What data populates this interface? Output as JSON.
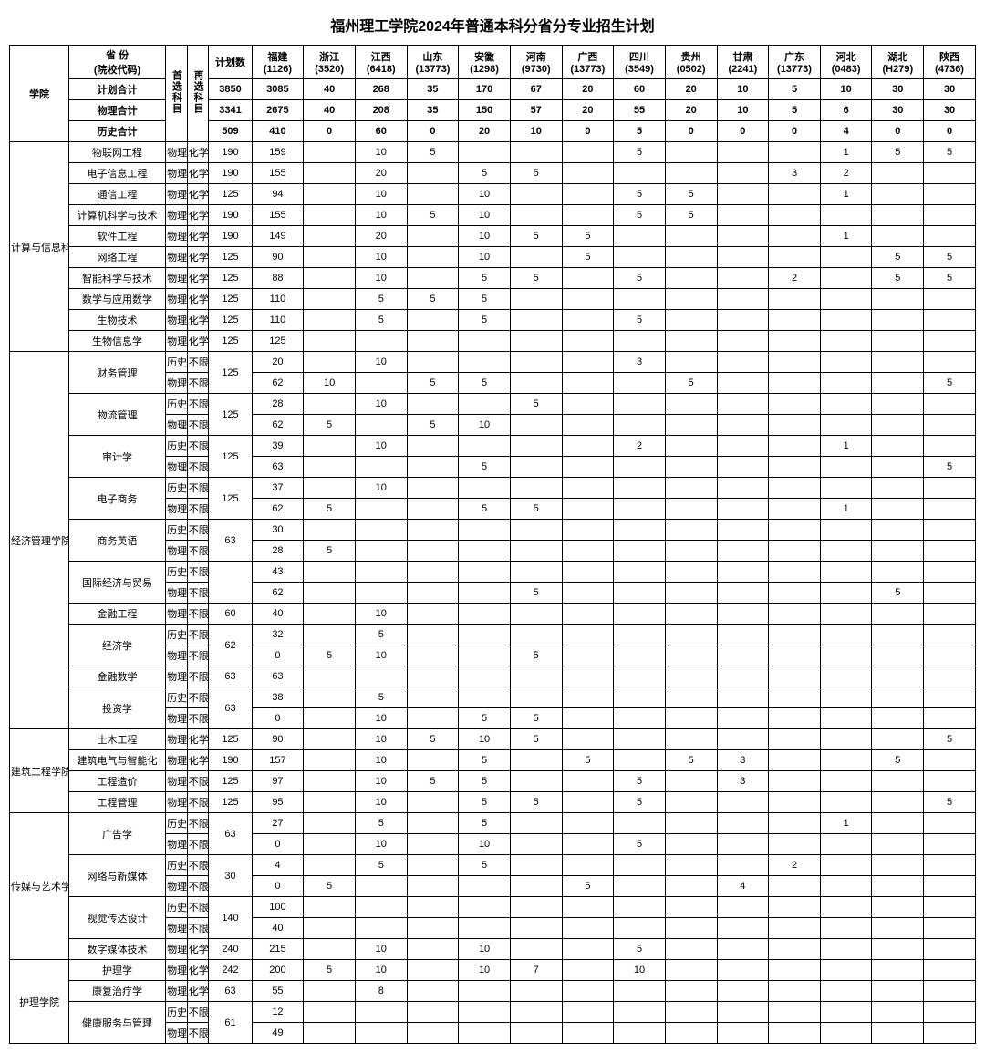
{
  "title": "福州理工学院2024年普通本科分省分专业招生计划",
  "header": {
    "college": "学院",
    "province_code": "省 份\n(院校代码)",
    "first_sub": "首选科目",
    "second_sub": "再选科目",
    "plan_count": "计划数",
    "provinces": [
      {
        "name": "福建",
        "code": "(1126)"
      },
      {
        "name": "浙江",
        "code": "(3520)"
      },
      {
        "name": "江西",
        "code": "(6418)"
      },
      {
        "name": "山东",
        "code": "(13773)"
      },
      {
        "name": "安徽",
        "code": "(1298)"
      },
      {
        "name": "河南",
        "code": "(9730)"
      },
      {
        "name": "广西",
        "code": "(13773)"
      },
      {
        "name": "四川",
        "code": "(3549)"
      },
      {
        "name": "贵州",
        "code": "(0502)"
      },
      {
        "name": "甘肃",
        "code": "(2241)"
      },
      {
        "name": "广东",
        "code": "(13773)"
      },
      {
        "name": "河北",
        "code": "(0483)"
      },
      {
        "name": "湖北",
        "code": "(H279)"
      },
      {
        "name": "陕西",
        "code": "(4736)"
      }
    ],
    "total_plan": "计划合计",
    "physics_total": "物理合计",
    "history_total": "历史合计"
  },
  "totals": {
    "all": [
      "3850",
      "3085",
      "40",
      "268",
      "35",
      "170",
      "67",
      "20",
      "60",
      "20",
      "10",
      "5",
      "10",
      "30",
      "30"
    ],
    "physics": [
      "3341",
      "2675",
      "40",
      "208",
      "35",
      "150",
      "57",
      "20",
      "55",
      "20",
      "10",
      "5",
      "6",
      "30",
      "30"
    ],
    "history": [
      "509",
      "410",
      "0",
      "60",
      "0",
      "20",
      "10",
      "0",
      "5",
      "0",
      "0",
      "0",
      "4",
      "0",
      "0"
    ]
  },
  "colleges": [
    {
      "name": "计算与信息科学学院",
      "rows": [
        {
          "major": "物联网工程",
          "s1": "物理",
          "s2": "化学",
          "plan": "190",
          "v": [
            "159",
            "",
            "10",
            "5",
            "",
            "",
            "",
            "5",
            "",
            "",
            "",
            "1",
            "5",
            "5"
          ]
        },
        {
          "major": "电子信息工程",
          "s1": "物理",
          "s2": "化学",
          "plan": "190",
          "v": [
            "155",
            "",
            "20",
            "",
            "5",
            "5",
            "",
            "",
            "",
            "",
            "3",
            "2",
            "",
            ""
          ]
        },
        {
          "major": "通信工程",
          "s1": "物理",
          "s2": "化学",
          "plan": "125",
          "v": [
            "94",
            "",
            "10",
            "",
            "10",
            "",
            "",
            "5",
            "5",
            "",
            "",
            "1",
            "",
            ""
          ]
        },
        {
          "major": "计算机科学与技术",
          "s1": "物理",
          "s2": "化学",
          "plan": "190",
          "v": [
            "155",
            "",
            "10",
            "5",
            "10",
            "",
            "",
            "5",
            "5",
            "",
            "",
            "",
            "",
            ""
          ]
        },
        {
          "major": "软件工程",
          "s1": "物理",
          "s2": "化学",
          "plan": "190",
          "v": [
            "149",
            "",
            "20",
            "",
            "10",
            "5",
            "5",
            "",
            "",
            "",
            "",
            "1",
            "",
            ""
          ]
        },
        {
          "major": "网络工程",
          "s1": "物理",
          "s2": "化学",
          "plan": "125",
          "v": [
            "90",
            "",
            "10",
            "",
            "10",
            "",
            "5",
            "",
            "",
            "",
            "",
            "",
            "5",
            "5"
          ]
        },
        {
          "major": "智能科学与技术",
          "s1": "物理",
          "s2": "化学",
          "plan": "125",
          "v": [
            "88",
            "",
            "10",
            "",
            "5",
            "5",
            "",
            "5",
            "",
            "",
            "2",
            "",
            "5",
            "5"
          ]
        },
        {
          "major": "数学与应用数学",
          "s1": "物理",
          "s2": "化学",
          "plan": "125",
          "v": [
            "110",
            "",
            "5",
            "5",
            "5",
            "",
            "",
            "",
            "",
            "",
            "",
            "",
            "",
            ""
          ]
        },
        {
          "major": "生物技术",
          "s1": "物理",
          "s2": "化学",
          "plan": "125",
          "v": [
            "110",
            "",
            "5",
            "",
            "5",
            "",
            "",
            "5",
            "",
            "",
            "",
            "",
            "",
            ""
          ]
        },
        {
          "major": "生物信息学",
          "s1": "物理",
          "s2": "化学",
          "plan": "125",
          "v": [
            "125",
            "",
            "",
            "",
            "",
            "",
            "",
            "",
            "",
            "",
            "",
            "",
            "",
            ""
          ]
        }
      ]
    },
    {
      "name": "经济管理学院",
      "rows": [
        {
          "major": "财务管理",
          "span": 2,
          "s1": "历史",
          "s2": "不限",
          "plan": "125",
          "v": [
            "20",
            "",
            "10",
            "",
            "",
            "",
            "",
            "3",
            "",
            "",
            "",
            "",
            "",
            ""
          ]
        },
        {
          "s1": "物理",
          "s2": "不限",
          "v": [
            "62",
            "10",
            "",
            "5",
            "5",
            "",
            "",
            "",
            "5",
            "",
            "",
            "",
            "",
            "5"
          ]
        },
        {
          "major": "物流管理",
          "span": 2,
          "s1": "历史",
          "s2": "不限",
          "plan": "125",
          "v": [
            "28",
            "",
            "10",
            "",
            "",
            "5",
            "",
            "",
            "",
            "",
            "",
            "",
            "",
            ""
          ]
        },
        {
          "s1": "物理",
          "s2": "不限",
          "v": [
            "62",
            "5",
            "",
            "5",
            "10",
            "",
            "",
            "",
            "",
            "",
            "",
            "",
            "",
            ""
          ]
        },
        {
          "major": "审计学",
          "span": 2,
          "s1": "历史",
          "s2": "不限",
          "plan": "125",
          "v": [
            "39",
            "",
            "10",
            "",
            "",
            "",
            "",
            "2",
            "",
            "",
            "",
            "1",
            "",
            ""
          ]
        },
        {
          "s1": "物理",
          "s2": "不限",
          "v": [
            "63",
            "",
            "",
            "",
            "5",
            "",
            "",
            "",
            "",
            "",
            "",
            "",
            "",
            "5"
          ]
        },
        {
          "major": "电子商务",
          "span": 2,
          "s1": "历史",
          "s2": "不限",
          "plan": "125",
          "v": [
            "37",
            "",
            "10",
            "",
            "",
            "",
            "",
            "",
            "",
            "",
            "",
            "",
            "",
            ""
          ]
        },
        {
          "s1": "物理",
          "s2": "不限",
          "v": [
            "62",
            "5",
            "",
            "",
            "5",
            "5",
            "",
            "",
            "",
            "",
            "",
            "1",
            "",
            ""
          ]
        },
        {
          "major": "商务英语",
          "span": 2,
          "s1": "历史",
          "s2": "不限",
          "plan": "63",
          "v": [
            "30",
            "",
            "",
            "",
            "",
            "",
            "",
            "",
            "",
            "",
            "",
            "",
            "",
            ""
          ]
        },
        {
          "s1": "物理",
          "s2": "不限",
          "v": [
            "28",
            "5",
            "",
            "",
            "",
            "",
            "",
            "",
            "",
            "",
            "",
            "",
            "",
            ""
          ]
        },
        {
          "major": "国际经济与贸易",
          "span": 2,
          "s1": "历史",
          "s2": "不限",
          "plan": "",
          "v": [
            "43",
            "",
            "",
            "",
            "",
            "",
            "",
            "",
            "",
            "",
            "",
            "",
            "",
            ""
          ]
        },
        {
          "s1": "物理",
          "s2": "不限",
          "v": [
            "62",
            "",
            "",
            "",
            "",
            "5",
            "",
            "",
            "",
            "",
            "",
            "",
            "5",
            ""
          ]
        },
        {
          "major": "金融工程",
          "s1": "物理",
          "s2": "不限",
          "plan": "60",
          "v": [
            "40",
            "",
            "10",
            "",
            "",
            "",
            "",
            "",
            "",
            "",
            "",
            "",
            "",
            ""
          ]
        },
        {
          "major": "经济学",
          "span": 2,
          "s1": "历史",
          "s2": "不限",
          "plan": "62",
          "v": [
            "32",
            "",
            "5",
            "",
            "",
            "",
            "",
            "",
            "",
            "",
            "",
            "",
            "",
            ""
          ]
        },
        {
          "s1": "物理",
          "s2": "不限",
          "v": [
            "0",
            "5",
            "10",
            "",
            "",
            "5",
            "",
            "",
            "",
            "",
            "",
            "",
            "",
            ""
          ]
        },
        {
          "major": "金融数学",
          "s1": "物理",
          "s2": "不限",
          "plan": "63",
          "v": [
            "63",
            "",
            "",
            "",
            "",
            "",
            "",
            "",
            "",
            "",
            "",
            "",
            "",
            ""
          ]
        },
        {
          "major": "投资学",
          "span": 2,
          "s1": "历史",
          "s2": "不限",
          "plan": "63",
          "v": [
            "38",
            "",
            "5",
            "",
            "",
            "",
            "",
            "",
            "",
            "",
            "",
            "",
            "",
            ""
          ]
        },
        {
          "s1": "物理",
          "s2": "不限",
          "v": [
            "0",
            "",
            "10",
            "",
            "5",
            "5",
            "",
            "",
            "",
            "",
            "",
            "",
            "",
            ""
          ]
        }
      ]
    },
    {
      "name": "建筑工程学院",
      "rows": [
        {
          "major": "土木工程",
          "s1": "物理",
          "s2": "化学",
          "plan": "125",
          "v": [
            "90",
            "",
            "10",
            "5",
            "10",
            "5",
            "",
            "",
            "",
            "",
            "",
            "",
            "",
            "5"
          ]
        },
        {
          "major": "建筑电气与智能化",
          "s1": "物理",
          "s2": "化学",
          "plan": "190",
          "v": [
            "157",
            "",
            "10",
            "",
            "5",
            "",
            "5",
            "",
            "5",
            "3",
            "",
            "",
            "5",
            ""
          ]
        },
        {
          "major": "工程造价",
          "s1": "物理",
          "s2": "不限",
          "plan": "125",
          "v": [
            "97",
            "",
            "10",
            "5",
            "5",
            "",
            "",
            "5",
            "",
            "3",
            "",
            "",
            "",
            ""
          ]
        },
        {
          "major": "工程管理",
          "s1": "物理",
          "s2": "不限",
          "plan": "125",
          "v": [
            "95",
            "",
            "10",
            "",
            "5",
            "5",
            "",
            "5",
            "",
            "",
            "",
            "",
            "",
            "5"
          ]
        }
      ]
    },
    {
      "name": "传媒与艺术学院",
      "rows": [
        {
          "major": "广告学",
          "span": 2,
          "s1": "历史",
          "s2": "不限",
          "plan": "63",
          "v": [
            "27",
            "",
            "5",
            "",
            "5",
            "",
            "",
            "",
            "",
            "",
            "",
            "1",
            "",
            ""
          ]
        },
        {
          "s1": "物理",
          "s2": "不限",
          "v": [
            "0",
            "",
            "10",
            "",
            "10",
            "",
            "",
            "5",
            "",
            "",
            "",
            "",
            "",
            ""
          ]
        },
        {
          "major": "网络与新媒体",
          "span": 2,
          "s1": "历史",
          "s2": "不限",
          "plan": "30",
          "v": [
            "4",
            "",
            "5",
            "",
            "5",
            "",
            "",
            "",
            "",
            "",
            "2",
            "",
            "",
            ""
          ]
        },
        {
          "s1": "物理",
          "s2": "不限",
          "v": [
            "0",
            "5",
            "",
            "",
            "",
            "",
            "5",
            "",
            "",
            "4",
            "",
            "",
            "",
            ""
          ]
        },
        {
          "major": "视觉传达设计",
          "span": 2,
          "s1": "历史",
          "s2": "不限",
          "plan": "140",
          "v": [
            "100",
            "",
            "",
            "",
            "",
            "",
            "",
            "",
            "",
            "",
            "",
            "",
            "",
            ""
          ]
        },
        {
          "s1": "物理",
          "s2": "不限",
          "v": [
            "40",
            "",
            "",
            "",
            "",
            "",
            "",
            "",
            "",
            "",
            "",
            "",
            "",
            ""
          ]
        },
        {
          "major": "数字媒体技术",
          "s1": "物理",
          "s2": "化学",
          "plan": "240",
          "v": [
            "215",
            "",
            "10",
            "",
            "10",
            "",
            "",
            "5",
            "",
            "",
            "",
            "",
            "",
            ""
          ]
        }
      ]
    },
    {
      "name": "护理学院",
      "rows": [
        {
          "major": "护理学",
          "s1": "物理",
          "s2": "化学",
          "plan": "242",
          "v": [
            "200",
            "5",
            "10",
            "",
            "10",
            "7",
            "",
            "10",
            "",
            "",
            "",
            "",
            "",
            ""
          ]
        },
        {
          "major": "康复治疗学",
          "s1": "物理",
          "s2": "化学",
          "plan": "63",
          "v": [
            "55",
            "",
            "8",
            "",
            "",
            "",
            "",
            "",
            "",
            "",
            "",
            "",
            "",
            ""
          ]
        },
        {
          "major": "健康服务与管理",
          "span": 2,
          "s1": "历史",
          "s2": "不限",
          "plan": "61",
          "v": [
            "12",
            "",
            "",
            "",
            "",
            "",
            "",
            "",
            "",
            "",
            "",
            "",
            "",
            ""
          ]
        },
        {
          "s1": "物理",
          "s2": "不限",
          "v": [
            "49",
            "",
            "",
            "",
            "",
            "",
            "",
            "",
            "",
            "",
            "",
            "",
            "",
            ""
          ]
        }
      ]
    }
  ]
}
